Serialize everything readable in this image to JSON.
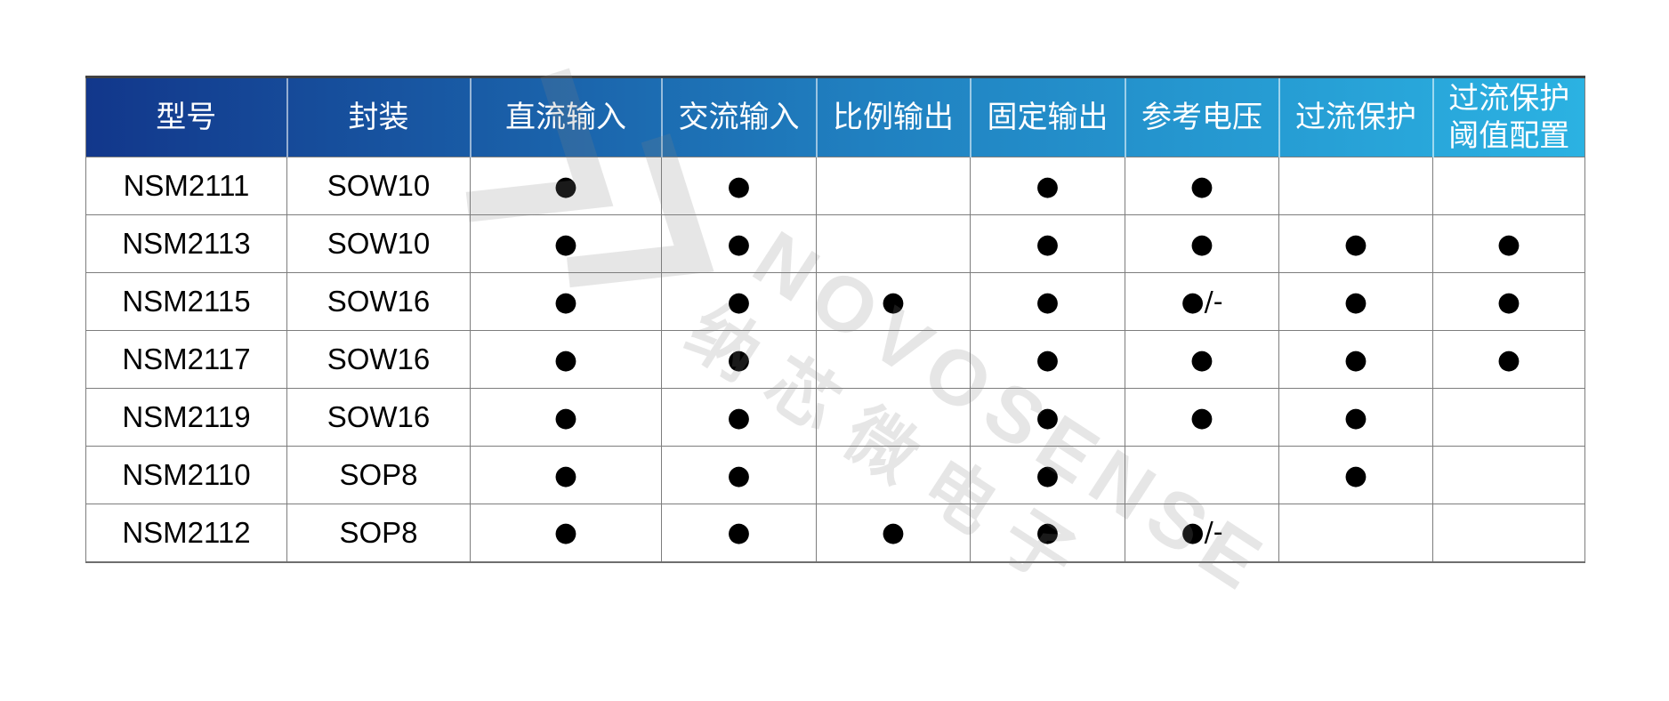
{
  "table": {
    "columns": [
      {
        "key": "model",
        "label": "型号"
      },
      {
        "key": "package",
        "label": "封装"
      },
      {
        "key": "dc-input",
        "label": "直流输入"
      },
      {
        "key": "ac-input",
        "label": "交流输入"
      },
      {
        "key": "ratio-output",
        "label": "比例输出"
      },
      {
        "key": "fixed-output",
        "label": "固定输出"
      },
      {
        "key": "ref-voltage",
        "label": "参考电压"
      },
      {
        "key": "ocp",
        "label": "过流保护"
      },
      {
        "key": "ocp-threshold",
        "label": "过流保护",
        "label2": "阈值配置"
      }
    ],
    "rows": [
      [
        "NSM2111",
        "SOW10",
        "●",
        "●",
        "",
        "●",
        "",
        "",
        ""
      ],
      [
        "NSM2113",
        "SOW10",
        "●",
        "●",
        "",
        "●",
        "●",
        "●",
        "●"
      ],
      [
        "NSM2115",
        "SOW16",
        "●",
        "●",
        "●",
        "●",
        "●/-",
        "●",
        "●"
      ],
      [
        "NSM2117",
        "SOW16",
        "●",
        "●",
        "",
        "●",
        "●",
        "●",
        "●"
      ],
      [
        "NSM2119",
        "SOW16",
        "●",
        "●",
        "",
        "●",
        "●",
        "●",
        ""
      ],
      [
        "NSM2110",
        "SOP8",
        "●",
        "●",
        "",
        "●",
        "",
        "●",
        ""
      ],
      [
        "NSM2112",
        "SOP8",
        "●",
        "●",
        "●",
        "●",
        "●/-",
        "",
        ""
      ]
    ],
    "row_overrides": {
      "NSM2111": {
        "ref-voltage": "●"
      },
      "NSM2110": {
        "ref-voltage": ""
      }
    }
  },
  "chart_data": {
    "type": "table",
    "title": "",
    "columns": [
      "型号",
      "封装",
      "直流输入",
      "交流输入",
      "比例输出",
      "固定输出",
      "参考电压",
      "过流保护",
      "过流保护阈值配置"
    ],
    "rows": [
      [
        "NSM2111",
        "SOW10",
        "●",
        "●",
        "",
        "●",
        "●",
        "",
        ""
      ],
      [
        "NSM2113",
        "SOW10",
        "●",
        "●",
        "",
        "●",
        "●",
        "●",
        "●"
      ],
      [
        "NSM2115",
        "SOW16",
        "●",
        "●",
        "●",
        "●",
        "●/-",
        "●",
        "●"
      ],
      [
        "NSM2117",
        "SOW16",
        "●",
        "●",
        "",
        "●",
        "●",
        "●",
        "●"
      ],
      [
        "NSM2119",
        "SOW16",
        "●",
        "●",
        "",
        "●",
        "●",
        "●",
        ""
      ],
      [
        "NSM2110",
        "SOP8",
        "●",
        "●",
        "",
        "●",
        "",
        "●",
        ""
      ],
      [
        "NSM2112",
        "SOP8",
        "●",
        "●",
        "●",
        "●",
        "●/-",
        "",
        ""
      ]
    ]
  },
  "watermark": {
    "logo": "novosense-logo",
    "brand": "NOVOSENSE",
    "brand_cn": "纳芯微电子"
  },
  "colors": {
    "header_gradient_start": "#12378b",
    "header_gradient_mid": "#2080c0",
    "header_gradient_end": "#2bb2e2",
    "header_text": "#ffffff",
    "grid_line": "#7d7d7d",
    "cell_text": "#000000",
    "watermark_gray": "#e9e9e9"
  }
}
